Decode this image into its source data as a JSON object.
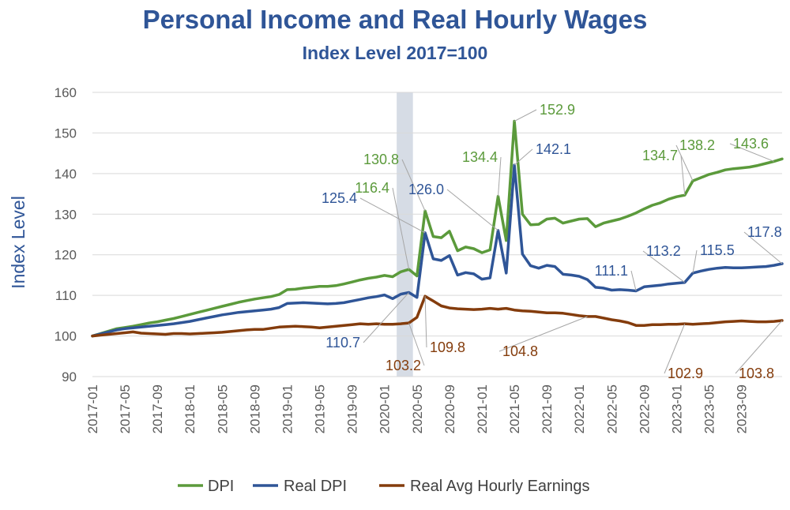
{
  "chart_data": {
    "type": "line",
    "title": "Personal Income and Real Hourly Wages",
    "subtitle": "Index Level 2017=100",
    "ylabel": "Index Level",
    "xlabel": "",
    "ylim": [
      90,
      160
    ],
    "yticks": [
      90,
      100,
      110,
      120,
      130,
      140,
      150,
      160
    ],
    "x_tick_labels": [
      "2017-01",
      "2017-05",
      "2017-09",
      "2018-01",
      "2018-05",
      "2018-09",
      "2019-01",
      "2019-05",
      "2019-09",
      "2020-01",
      "2020-05",
      "2020-09",
      "2021-01",
      "2021-05",
      "2021-09",
      "2022-01",
      "2022-05",
      "2022-09",
      "2023-01",
      "2023-05",
      "2023-09"
    ],
    "x_start": "2017-01",
    "grid": "horizontal",
    "legend_position": "bottom",
    "recession_band": [
      "2020-03",
      "2020-04"
    ],
    "series": [
      {
        "name": "DPI",
        "color": "#5b9a3b",
        "values": [
          100,
          100.6,
          101.2,
          101.8,
          102.1,
          102.4,
          102.8,
          103.2,
          103.5,
          103.9,
          104.3,
          104.8,
          105.3,
          105.8,
          106.3,
          106.8,
          107.3,
          107.8,
          108.3,
          108.7,
          109.1,
          109.4,
          109.7,
          110.2,
          111.4,
          111.5,
          111.8,
          112.0,
          112.2,
          112.2,
          112.4,
          112.8,
          113.3,
          113.8,
          114.2,
          114.5,
          114.9,
          114.6,
          115.8,
          116.4,
          114.8,
          130.8,
          124.5,
          124.2,
          125.8,
          121.0,
          121.9,
          121.5,
          120.5,
          121.2,
          134.4,
          123.5,
          152.9,
          130.0,
          127.4,
          127.5,
          128.8,
          129.0,
          127.8,
          128.3,
          128.8,
          128.9,
          126.9,
          127.8,
          128.3,
          128.8,
          129.5,
          130.3,
          131.3,
          132.2,
          132.8,
          133.7,
          134.3,
          134.7,
          138.2,
          139.0,
          139.8,
          140.3,
          140.9,
          141.2,
          141.4,
          141.6,
          142.0,
          142.5,
          143.0,
          143.6
        ]
      },
      {
        "name": "Real DPI",
        "color": "#2f5597",
        "values": [
          100,
          100.5,
          101.0,
          101.5,
          101.8,
          102.0,
          102.2,
          102.4,
          102.6,
          102.8,
          103.0,
          103.3,
          103.6,
          104.0,
          104.4,
          104.8,
          105.2,
          105.5,
          105.8,
          106.0,
          106.2,
          106.4,
          106.6,
          107.0,
          108.0,
          108.1,
          108.2,
          108.1,
          108.0,
          107.9,
          108.0,
          108.2,
          108.6,
          109.0,
          109.4,
          109.7,
          110.1,
          109.2,
          110.3,
          110.7,
          109.5,
          125.4,
          119.0,
          118.6,
          119.8,
          115.0,
          115.6,
          115.3,
          114.0,
          114.3,
          126.0,
          115.5,
          142.1,
          120.2,
          117.3,
          116.7,
          117.4,
          117.1,
          115.2,
          115.0,
          114.7,
          113.9,
          112.0,
          111.8,
          111.3,
          111.4,
          111.3,
          111.1,
          112.1,
          112.3,
          112.5,
          112.8,
          113.0,
          113.2,
          115.5,
          116.0,
          116.4,
          116.7,
          116.9,
          116.8,
          116.8,
          116.9,
          117.0,
          117.1,
          117.4,
          117.8
        ]
      },
      {
        "name": "Real Avg Hourly Earnings",
        "color": "#843c0c",
        "values": [
          100,
          100.2,
          100.4,
          100.6,
          100.8,
          101.0,
          100.7,
          100.6,
          100.5,
          100.4,
          100.6,
          100.6,
          100.5,
          100.6,
          100.7,
          100.8,
          100.9,
          101.1,
          101.3,
          101.5,
          101.6,
          101.6,
          101.9,
          102.2,
          102.3,
          102.4,
          102.3,
          102.2,
          102.0,
          102.2,
          102.4,
          102.6,
          102.8,
          103.0,
          102.9,
          103.0,
          102.9,
          102.9,
          103.0,
          103.2,
          104.6,
          109.8,
          108.6,
          107.4,
          106.9,
          106.7,
          106.6,
          106.5,
          106.6,
          106.8,
          106.6,
          106.8,
          106.4,
          106.2,
          106.1,
          105.9,
          105.7,
          105.7,
          105.6,
          105.3,
          105.0,
          104.8,
          104.8,
          104.4,
          104.0,
          103.7,
          103.3,
          102.6,
          102.6,
          102.8,
          102.8,
          102.9,
          102.9,
          103.0,
          102.9,
          103.0,
          103.1,
          103.3,
          103.5,
          103.6,
          103.7,
          103.6,
          103.5,
          103.5,
          103.6,
          103.8
        ]
      }
    ],
    "annotations": [
      {
        "text": "116.4",
        "series": "DPI"
      },
      {
        "text": "130.8",
        "series": "DPI"
      },
      {
        "text": "134.4",
        "series": "DPI"
      },
      {
        "text": "152.9",
        "series": "DPI"
      },
      {
        "text": "134.7",
        "series": "DPI"
      },
      {
        "text": "138.2",
        "series": "DPI"
      },
      {
        "text": "143.6",
        "series": "DPI"
      },
      {
        "text": "125.4",
        "series": "Real DPI"
      },
      {
        "text": "126.0",
        "series": "Real DPI"
      },
      {
        "text": "142.1",
        "series": "Real DPI"
      },
      {
        "text": "110.7",
        "series": "Real DPI"
      },
      {
        "text": "111.1",
        "series": "Real DPI"
      },
      {
        "text": "113.2",
        "series": "Real DPI"
      },
      {
        "text": "115.5",
        "series": "Real DPI"
      },
      {
        "text": "117.8",
        "series": "Real DPI"
      },
      {
        "text": "103.2",
        "series": "Real Avg Hourly Earnings"
      },
      {
        "text": "109.8",
        "series": "Real Avg Hourly Earnings"
      },
      {
        "text": "104.8",
        "series": "Real Avg Hourly Earnings"
      },
      {
        "text": "102.9",
        "series": "Real Avg Hourly Earnings"
      },
      {
        "text": "103.8",
        "series": "Real Avg Hourly Earnings"
      }
    ]
  }
}
